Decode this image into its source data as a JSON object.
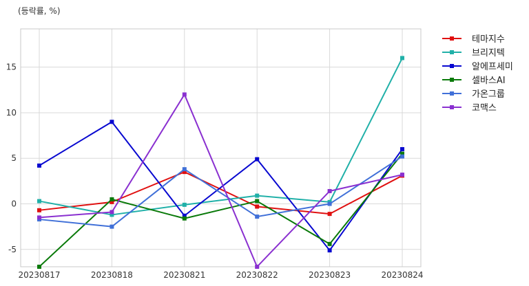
{
  "chart_data": {
    "type": "line",
    "title": "",
    "unit_label": "(등락률, %)",
    "xlabel": "",
    "ylabel": "",
    "categories": [
      "20230817",
      "20230818",
      "20230821",
      "20230822",
      "20230823",
      "20230824"
    ],
    "ylim": [
      -6.9,
      19.2
    ],
    "yticks": [
      -5,
      0,
      5,
      10,
      15
    ],
    "grid": true,
    "legend_position": "right",
    "series": [
      {
        "name": "테마지수",
        "color": "#e01010",
        "values": [
          -0.7,
          0.2,
          3.5,
          -0.3,
          -1.1,
          3.1
        ]
      },
      {
        "name": "브리지텍",
        "color": "#20b0a8",
        "values": [
          0.3,
          -1.2,
          -0.1,
          0.9,
          0.2,
          16.0
        ]
      },
      {
        "name": "알에프세미",
        "color": "#0808d0",
        "values": [
          4.2,
          9.0,
          -1.3,
          4.9,
          -5.1,
          6.0
        ]
      },
      {
        "name": "셀바스AI",
        "color": "#0a7a0a",
        "values": [
          -6.9,
          0.5,
          -1.6,
          0.3,
          -4.4,
          5.5
        ]
      },
      {
        "name": "가온그룹",
        "color": "#4070d8",
        "values": [
          -1.7,
          -2.5,
          3.8,
          -1.4,
          0.0,
          5.2
        ]
      },
      {
        "name": "코맥스",
        "color": "#8a30d0",
        "values": [
          -1.5,
          -0.9,
          12.0,
          -6.9,
          1.4,
          3.2
        ]
      }
    ]
  }
}
